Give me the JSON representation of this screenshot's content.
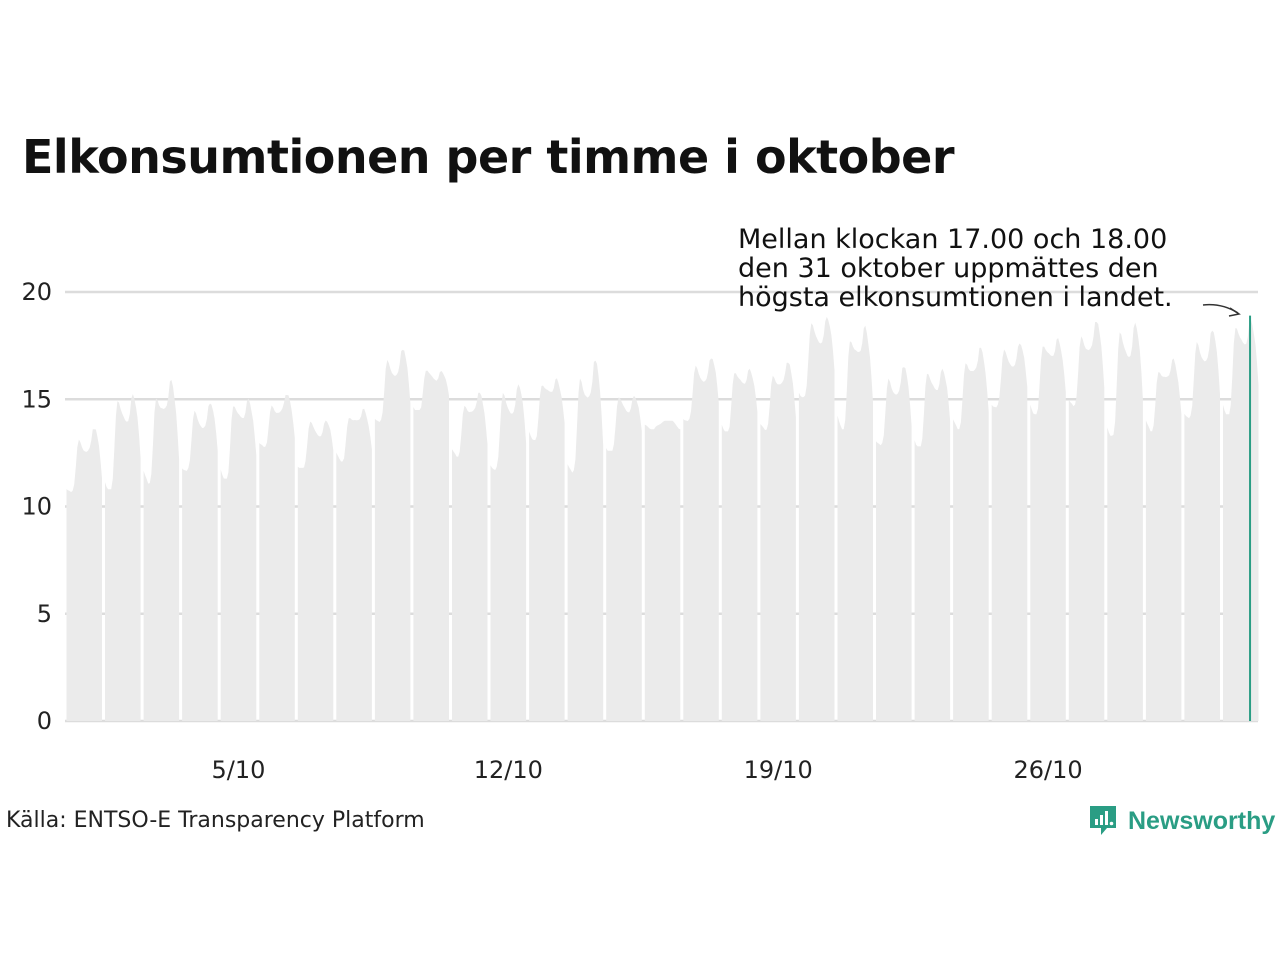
{
  "chart_data": {
    "type": "area",
    "title": "Elkonsumtionen per timme i oktober",
    "xlabel": "",
    "ylabel": "",
    "ylim": [
      0,
      22
    ],
    "yticks": [
      "0",
      "5",
      "10",
      "15",
      "20"
    ],
    "xticks": [
      "5/10",
      "12/10",
      "19/10",
      "26/10"
    ],
    "grid": true,
    "series": [
      {
        "days": [
          "1/10",
          "2/10",
          "3/10",
          "4/10",
          "5/10",
          "6/10",
          "7/10",
          "8/10",
          "9/10",
          "10/10",
          "11/10",
          "12/10",
          "13/10",
          "14/10",
          "15/10",
          "16/10",
          "17/10",
          "18/10",
          "19/10",
          "20/10",
          "21/10",
          "22/10",
          "23/10",
          "24/10",
          "25/10",
          "26/10",
          "27/10",
          "28/10",
          "29/10",
          "30/10",
          "31/10"
        ],
        "daily_min": [
          10.5,
          10.8,
          11.0,
          11.6,
          11.3,
          12.6,
          11.8,
          12.1,
          13.8,
          14.5,
          12.2,
          11.7,
          13.1,
          11.4,
          12.6,
          13.6,
          13.9,
          13.5,
          13.4,
          15.1,
          13.6,
          12.7,
          12.8,
          13.5,
          14.6,
          14.3,
          14.5,
          13.3,
          13.5,
          14.0,
          14.3
        ],
        "daily_max": [
          13.6,
          15.4,
          15.9,
          14.8,
          15.2,
          15.2,
          14.1,
          14.6,
          17.3,
          16.5,
          15.3,
          15.7,
          16.1,
          16.8,
          15.3,
          14.0,
          16.9,
          16.6,
          16.7,
          18.9,
          18.5,
          16.5,
          16.6,
          17.4,
          17.6,
          18.0,
          18.6,
          18.7,
          16.9,
          18.2,
          18.9
        ]
      }
    ],
    "highlight": {
      "value": 18.9,
      "day": "31/10",
      "hour": "17.00–18.00",
      "color": "#2a9d84"
    },
    "annotation": [
      "Mellan klockan 17.00 och 18.00",
      "den 31 oktober uppmättes den",
      "högsta elkonsumtionen i landet."
    ]
  },
  "footer": {
    "source": "Källa: ENTSO-E Transparency Platform",
    "brand": "Newsworthy",
    "brand_icon": "newsworthy-logo-icon"
  },
  "colors": {
    "area": "#ebebeb",
    "grid": "#dcdcdc",
    "accent": "#2a9d84"
  }
}
